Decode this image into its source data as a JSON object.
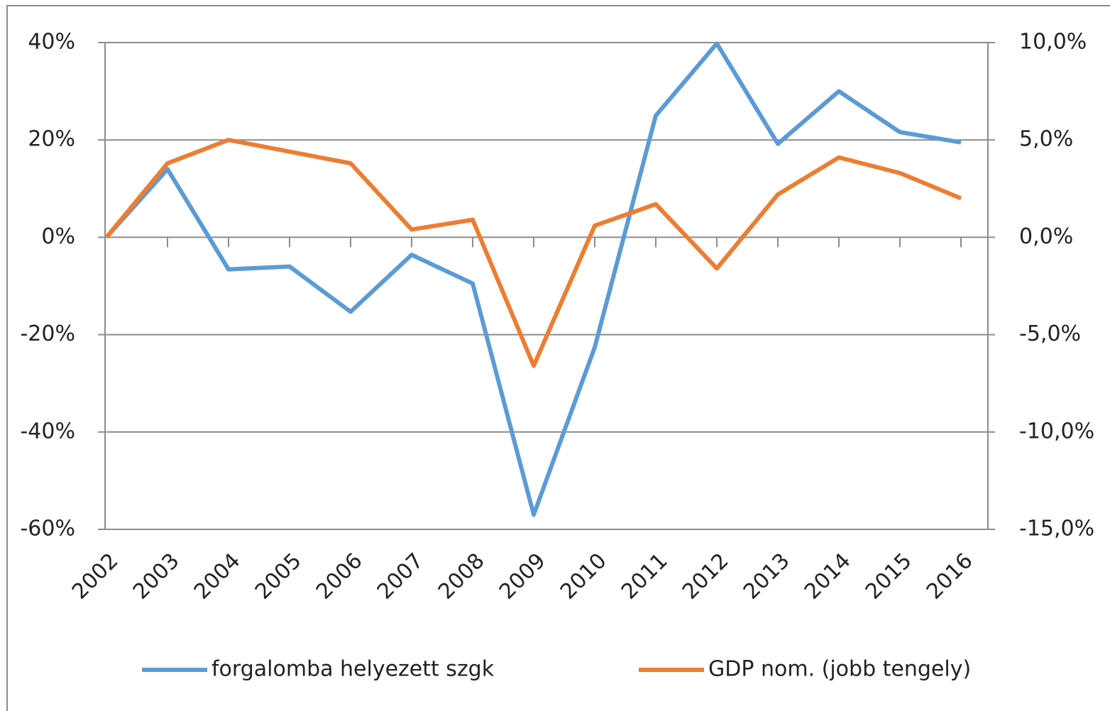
{
  "chart_data": {
    "type": "line",
    "categories": [
      "2002",
      "2003",
      "2004",
      "2005",
      "2006",
      "2007",
      "2008",
      "2009",
      "2010",
      "2011",
      "2012",
      "2013",
      "2014",
      "2015",
      "2016"
    ],
    "series": [
      {
        "name": "forgalomba helyezett szgk",
        "color": "#5b9bd5",
        "values": [
          0,
          14,
          -6.6,
          -6,
          -15.3,
          -3.6,
          -9.5,
          -57,
          -22.6,
          25,
          39.8,
          19.2,
          30,
          21.6,
          19.5
        ]
      },
      {
        "name": "GDP nom. (jobb tengely)",
        "color": "#ed7d31",
        "axis": "y2",
        "values": [
          0,
          3.8,
          5.0,
          4.4,
          3.8,
          0.4,
          0.9,
          -6.6,
          0.6,
          1.7,
          -1.6,
          2.2,
          4.1,
          3.3,
          2.0
        ]
      }
    ],
    "ylim": [
      -60,
      40
    ],
    "yticks": [
      {
        "value": -60,
        "label": "-60%"
      },
      {
        "value": -40,
        "label": "-40%"
      },
      {
        "value": -20,
        "label": "-20%"
      },
      {
        "value": 0,
        "label": "0%"
      },
      {
        "value": 20,
        "label": "20%"
      },
      {
        "value": 40,
        "label": "40%"
      }
    ],
    "y2lim": [
      -15,
      10
    ],
    "y2ticks": [
      {
        "value": -15,
        "label": "-15,0%"
      },
      {
        "value": -10,
        "label": "-10,0%"
      },
      {
        "value": -5,
        "label": "-5,0%"
      },
      {
        "value": 0,
        "label": "0,0%"
      },
      {
        "value": 5,
        "label": "5,0%"
      },
      {
        "value": 10,
        "label": "10,0%"
      }
    ],
    "grid": true,
    "legend": "bottom"
  }
}
